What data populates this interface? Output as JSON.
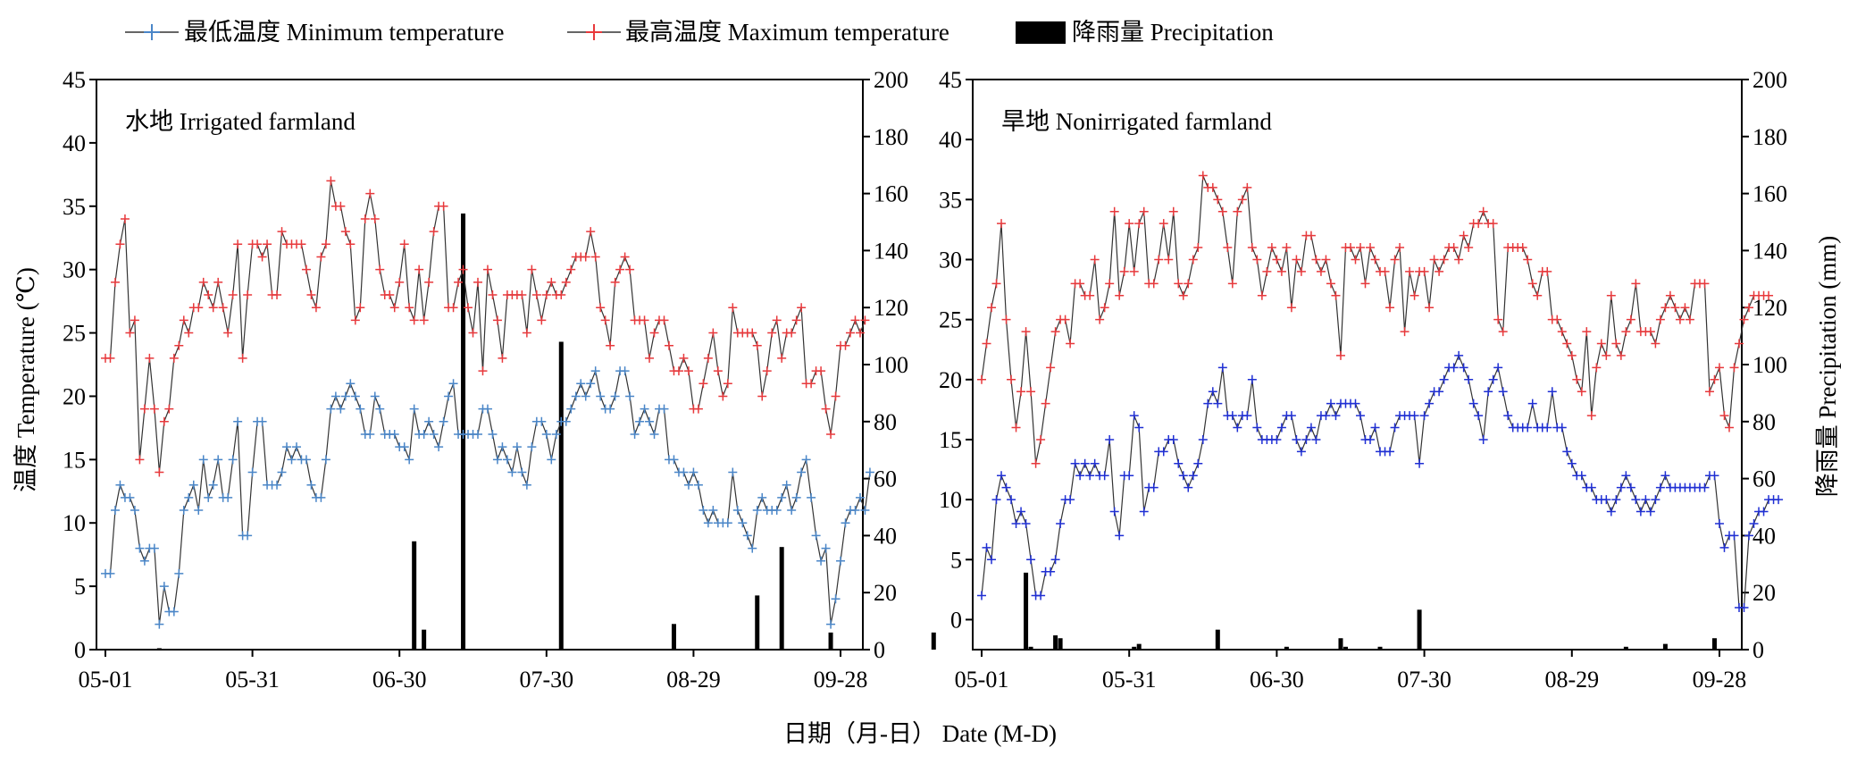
{
  "legend": {
    "min_label": "最低温度 Minimum temperature",
    "max_label": "最高温度 Maximum temperature",
    "precip_label": "降雨量 Precipitation"
  },
  "axes": {
    "x_title": "日期（月-日） Date (M-D)",
    "y_left_title": "温度 Temperature (℃)",
    "y_right_title": "降雨量 Precipitation (mm)"
  },
  "colors": {
    "min": "#4a86c8",
    "max": "#e8393c",
    "min_nonirr": "#1f2fd4",
    "line": "#333333",
    "bar": "#000000"
  },
  "chart_data": [
    {
      "type": "line+bar",
      "title": "水地 Irrigated farmland",
      "x_ticks": [
        "05-01",
        "05-31",
        "06-30",
        "07-30",
        "08-29",
        "09-28"
      ],
      "xlim": [
        "05-01",
        "09-30"
      ],
      "ylim": [
        0,
        45
      ],
      "y_ticks": [
        0,
        5,
        10,
        15,
        20,
        25,
        30,
        35,
        40,
        45
      ],
      "ylim_right": [
        0,
        200
      ],
      "y_ticks_right": [
        0,
        20,
        40,
        60,
        80,
        100,
        120,
        140,
        160,
        180,
        200
      ],
      "min_temperature": [
        6,
        6,
        11,
        13,
        12,
        12,
        11,
        8,
        7,
        8,
        8,
        2,
        5,
        3,
        3,
        6,
        11,
        12,
        13,
        11,
        15,
        12,
        13,
        15,
        12,
        12,
        15,
        18,
        9,
        9,
        14,
        18,
        18,
        13,
        13,
        13,
        14,
        16,
        15,
        16,
        15,
        15,
        13,
        12,
        12,
        15,
        19,
        20,
        19,
        20,
        21,
        20,
        19,
        17,
        17,
        20,
        19,
        17,
        17,
        17,
        16,
        16,
        15,
        19,
        17,
        17,
        18,
        17,
        16,
        18,
        20,
        21,
        17,
        17,
        17,
        17,
        17,
        19,
        19,
        17,
        15,
        16,
        15,
        14,
        16,
        14,
        13,
        16,
        18,
        18,
        17,
        15,
        17,
        18,
        18,
        19,
        20,
        21,
        20,
        21,
        22,
        20,
        19,
        19,
        20,
        22,
        22,
        20,
        17,
        18,
        19,
        18,
        17,
        19,
        19,
        15,
        15,
        14,
        14,
        13,
        14,
        13,
        11,
        10,
        11,
        10,
        10,
        10,
        14,
        11,
        10,
        9,
        8,
        11,
        12,
        11,
        11,
        11,
        12,
        13,
        11,
        12,
        14,
        15,
        12,
        9,
        7,
        8,
        2,
        4,
        7,
        10,
        11,
        11,
        12,
        11,
        14
      ],
      "max_temperature": [
        23,
        23,
        29,
        32,
        34,
        25,
        26,
        15,
        19,
        23,
        19,
        14,
        18,
        19,
        23,
        24,
        26,
        25,
        27,
        27,
        29,
        28,
        27,
        29,
        27,
        25,
        28,
        32,
        23,
        28,
        32,
        32,
        31,
        32,
        28,
        28,
        33,
        32,
        32,
        32,
        32,
        30,
        28,
        27,
        31,
        32,
        37,
        35,
        35,
        33,
        32,
        26,
        27,
        34,
        36,
        34,
        30,
        28,
        28,
        27,
        29,
        32,
        27,
        26,
        30,
        26,
        29,
        33,
        35,
        35,
        27,
        27,
        29,
        30,
        27,
        25,
        29,
        22,
        30,
        28,
        26,
        23,
        28,
        28,
        28,
        28,
        25,
        30,
        28,
        26,
        28,
        29,
        28,
        28,
        29,
        30,
        31,
        31,
        31,
        33,
        31,
        27,
        26,
        24,
        29,
        30,
        31,
        30,
        26,
        26,
        26,
        23,
        25,
        26,
        26,
        24,
        22,
        22,
        23,
        22,
        19,
        19,
        21,
        23,
        25,
        22,
        20,
        21,
        27,
        25,
        25,
        25,
        25,
        24,
        20,
        22,
        25,
        26,
        23,
        25,
        25,
        26,
        27,
        21,
        21,
        22,
        22,
        19,
        17,
        20,
        24,
        24,
        25,
        26,
        25,
        26
      ],
      "precipitation": [
        0,
        0,
        0,
        0,
        0,
        0,
        0,
        0,
        0,
        0,
        0,
        0.5,
        0,
        0,
        0,
        0,
        0,
        0,
        0,
        0,
        0,
        0,
        0,
        0,
        0,
        0,
        0,
        0,
        0,
        0,
        0,
        0,
        0,
        0,
        0,
        0,
        0,
        0,
        0,
        0,
        0,
        0,
        0,
        0,
        0,
        0,
        0,
        0,
        0,
        0,
        0,
        0,
        0,
        0,
        0,
        0,
        0,
        0,
        0,
        0,
        0,
        0,
        0,
        38,
        0,
        7,
        0,
        0,
        0,
        0,
        0,
        0,
        0,
        153,
        0,
        0,
        0,
        0,
        0,
        0,
        0,
        0,
        0,
        0,
        0,
        0,
        0,
        0,
        0,
        0,
        0,
        0,
        0,
        108,
        0,
        0,
        0,
        0,
        0,
        0,
        0,
        0,
        0,
        0,
        0,
        0,
        0,
        0,
        0,
        0,
        0,
        0,
        0,
        0,
        0,
        0,
        9,
        0,
        0,
        0,
        0,
        0,
        0,
        0,
        0,
        0,
        0,
        0,
        0,
        0,
        0,
        0,
        0,
        19,
        0,
        0,
        0,
        0,
        36,
        0,
        0,
        0,
        0,
        0,
        0,
        0,
        0,
        0,
        6,
        0,
        0,
        0,
        0,
        0,
        0,
        0,
        0,
        0,
        0,
        0,
        0,
        0,
        0,
        0,
        0,
        0,
        0,
        0,
        0,
        6,
        0,
        0,
        0,
        0,
        0,
        0,
        0,
        0,
        0
      ]
    },
    {
      "type": "line+bar",
      "title": "旱地 Nonirrigated farmland",
      "x_ticks": [
        "05-01",
        "05-31",
        "06-30",
        "07-30",
        "08-29",
        "09-28"
      ],
      "xlim": [
        "05-01",
        "09-30"
      ],
      "ylim": [
        -2.5,
        45
      ],
      "y_ticks": [
        0,
        5,
        10,
        15,
        20,
        25,
        30,
        35,
        40,
        45
      ],
      "ylim_right": [
        0,
        200
      ],
      "y_ticks_right": [
        0,
        20,
        40,
        60,
        80,
        100,
        120,
        140,
        160,
        180,
        200
      ],
      "min_temperature": [
        2,
        6,
        5,
        10,
        12,
        11,
        10,
        8,
        9,
        8,
        5,
        2,
        2,
        4,
        4,
        5,
        8,
        10,
        10,
        13,
        12,
        13,
        12,
        13,
        12,
        12,
        15,
        9,
        7,
        12,
        12,
        17,
        16,
        9,
        11,
        11,
        14,
        14,
        15,
        15,
        13,
        12,
        11,
        12,
        13,
        15,
        18,
        19,
        18,
        21,
        17,
        17,
        16,
        17,
        17,
        20,
        16,
        15,
        15,
        15,
        15,
        16,
        17,
        17,
        15,
        14,
        15,
        16,
        15,
        17,
        17,
        18,
        17,
        18,
        18,
        18,
        18,
        17,
        15,
        15,
        16,
        14,
        14,
        14,
        16,
        17,
        17,
        17,
        17,
        13,
        17,
        18,
        19,
        19,
        20,
        21,
        21,
        22,
        21,
        20,
        18,
        17,
        15,
        19,
        20,
        21,
        19,
        17,
        16,
        16,
        16,
        16,
        18,
        16,
        16,
        16,
        19,
        16,
        16,
        14,
        13,
        12,
        12,
        11,
        11,
        10,
        10,
        10,
        9,
        10,
        11,
        12,
        11,
        10,
        9,
        10,
        9,
        10,
        11,
        12,
        11,
        11,
        11,
        11,
        11,
        11,
        11,
        11,
        12,
        12,
        8,
        6,
        7,
        7,
        1,
        1,
        7,
        8,
        9,
        9,
        10,
        10,
        10
      ],
      "max_temperature": [
        20,
        23,
        26,
        28,
        33,
        25,
        20,
        16,
        19,
        24,
        19,
        13,
        15,
        18,
        21,
        24,
        25,
        25,
        23,
        28,
        28,
        27,
        27,
        30,
        25,
        26,
        28,
        34,
        27,
        29,
        33,
        29,
        33,
        34,
        28,
        28,
        30,
        33,
        30,
        34,
        28,
        27,
        28,
        30,
        31,
        37,
        36,
        36,
        35,
        34,
        31,
        28,
        34,
        35,
        36,
        31,
        30,
        27,
        29,
        31,
        30,
        29,
        31,
        26,
        30,
        29,
        32,
        32,
        30,
        29,
        30,
        28,
        27,
        22,
        31,
        31,
        30,
        31,
        28,
        31,
        30,
        29,
        29,
        26,
        30,
        31,
        24,
        29,
        27,
        29,
        29,
        26,
        30,
        29,
        30,
        31,
        31,
        30,
        32,
        31,
        33,
        33,
        34,
        33,
        33,
        25,
        24,
        31,
        31,
        31,
        31,
        30,
        28,
        27,
        29,
        29,
        25,
        25,
        24,
        23,
        22,
        20,
        19,
        24,
        17,
        21,
        23,
        22,
        27,
        23,
        22,
        24,
        25,
        28,
        24,
        24,
        24,
        23,
        25,
        26,
        27,
        26,
        25,
        26,
        25,
        28,
        28,
        28,
        19,
        20,
        21,
        17,
        16,
        21,
        23,
        25,
        26,
        27,
        27,
        27,
        27
      ],
      "precipitation": [
        0,
        0,
        0,
        0,
        0,
        0,
        0,
        0,
        0,
        27,
        1,
        0,
        0,
        0,
        0,
        5,
        4,
        0,
        0,
        0,
        0,
        0,
        0,
        0,
        0,
        0,
        0,
        0,
        0,
        0,
        0,
        1,
        2,
        0,
        0,
        0,
        0,
        0,
        0,
        0,
        0,
        0,
        0,
        0,
        0,
        0,
        0,
        0,
        7,
        0,
        0,
        0,
        0,
        0,
        0,
        0,
        0,
        0,
        0,
        0,
        0,
        0,
        1,
        0,
        0,
        0,
        0,
        0,
        0,
        0,
        0,
        0,
        0,
        4,
        1,
        0,
        0,
        0,
        0,
        0,
        0,
        1,
        0,
        0,
        0,
        0,
        0,
        0,
        0,
        14,
        0,
        0,
        0,
        0,
        0,
        0,
        0,
        0,
        0,
        0,
        0,
        0,
        0,
        0,
        0,
        0,
        0,
        0,
        0,
        0,
        0,
        0,
        0,
        0,
        0,
        0,
        0,
        0,
        0,
        0,
        0,
        0,
        0,
        0,
        0,
        0,
        0,
        0,
        0,
        0,
        0,
        1,
        0,
        0,
        0,
        0,
        0,
        0,
        0,
        2,
        0,
        0,
        0,
        0,
        0,
        0,
        0,
        0,
        0,
        4,
        0,
        0,
        0,
        0,
        0,
        0,
        0,
        0,
        0,
        0,
        0,
        0,
        0,
        0,
        0,
        0,
        0,
        0,
        0,
        0,
        0,
        0,
        0,
        0,
        0,
        0,
        0,
        0,
        0,
        0,
        0,
        0,
        0,
        0,
        0,
        0,
        0,
        0,
        0,
        0,
        0,
        0,
        0,
        0,
        0,
        0,
        0,
        0,
        0,
        0,
        0,
        0,
        0,
        0,
        0,
        0,
        0,
        0,
        0,
        0,
        0,
        0,
        0,
        0,
        0,
        0,
        0,
        0,
        0,
        0,
        0,
        0,
        0,
        0,
        0,
        0,
        0,
        0,
        0,
        0,
        0,
        0,
        0,
        0,
        0,
        0,
        0,
        0,
        0,
        0,
        0,
        0,
        0,
        0,
        0,
        0,
        0,
        0,
        0,
        0,
        0,
        0,
        0,
        0,
        0,
        0,
        0,
        0,
        0,
        0,
        0,
        0,
        0,
        0,
        0,
        0,
        0,
        0
      ]
    }
  ]
}
